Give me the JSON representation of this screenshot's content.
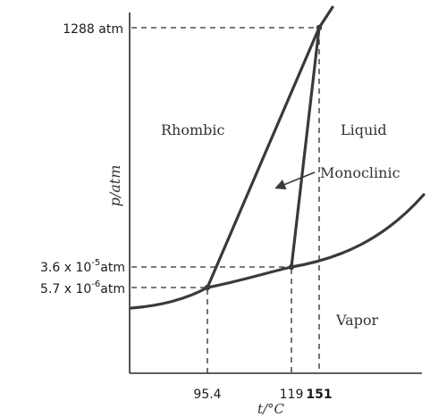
{
  "phase_diagram": {
    "axes": {
      "y_label": "p/atm",
      "x_label": "t/°C"
    },
    "y_ticks": {
      "critical": "1288 atm",
      "triple_upper_prefix": "3.6 x 10",
      "triple_upper_exp": "-5",
      "triple_upper_unit": "atm",
      "triple_lower_prefix": "5.7 x 10",
      "triple_lower_exp": "-6",
      "triple_lower_unit": "atm"
    },
    "x_ticks": {
      "t1": "95.4",
      "t2": "119",
      "t3": "151"
    },
    "regions": {
      "rhombic": "Rhombic",
      "liquid": "Liquid",
      "monoclinic": "Monoclinic",
      "vapor": "Vapor"
    },
    "colors": {
      "curve": "#3a3a3a",
      "text": "#1a1a1a"
    }
  }
}
